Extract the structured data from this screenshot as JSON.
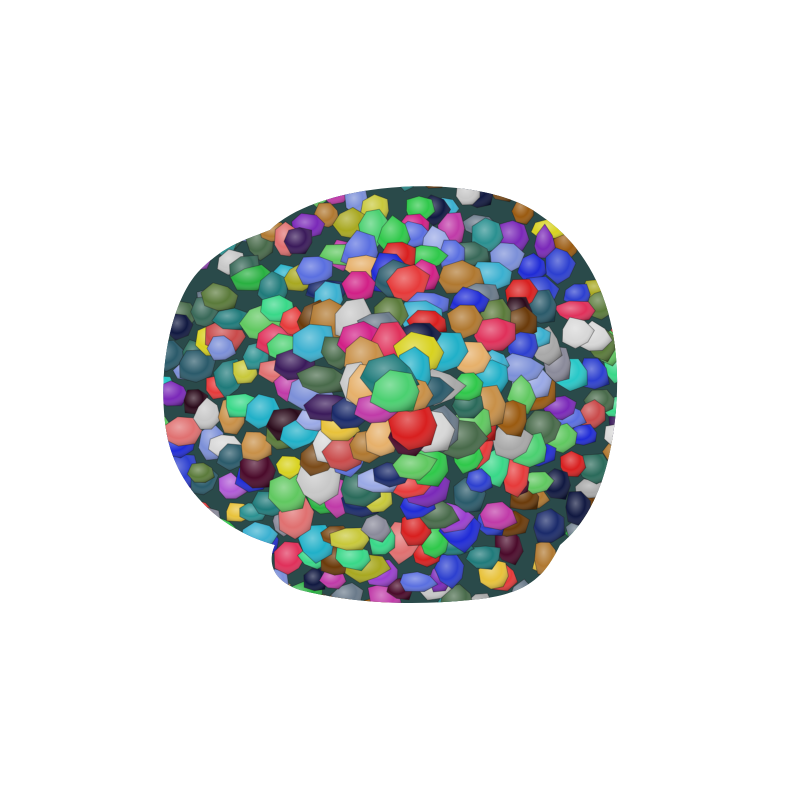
{
  "scene": {
    "background": "#ffffff",
    "subject": "segmented-cell-cluster-3d-render",
    "palette": [
      "#1f2bd6",
      "#2c3fcf",
      "#5a6fe0",
      "#7b8fd8",
      "#9aa9e6",
      "#7a28b8",
      "#9b3fcf",
      "#b05ad6",
      "#c03aa8",
      "#d11f86",
      "#e0305a",
      "#e63a3a",
      "#d81f1f",
      "#c94a4a",
      "#e07070",
      "#e8c23a",
      "#d8d21f",
      "#c8c83a",
      "#a8a820",
      "#e6b06a",
      "#9a5a10",
      "#7a4a18",
      "#6a3a0a",
      "#b07830",
      "#c89048",
      "#28c8c8",
      "#20b0c8",
      "#3ab0d0",
      "#2a9090",
      "#1f7a7a",
      "#2fc84a",
      "#28b040",
      "#4ad070",
      "#60c860",
      "#38d888",
      "#2a6a5a",
      "#386858",
      "#2a5a6a",
      "#486a4a",
      "#5a7a3a",
      "#a8a8a8",
      "#c8c8c8",
      "#d8d8d8",
      "#8a8a9a",
      "#6a7a8a",
      "#3a1a5a",
      "#4a0a2a",
      "#1a2a6a",
      "#2a0a1a",
      "#101840"
    ]
  }
}
